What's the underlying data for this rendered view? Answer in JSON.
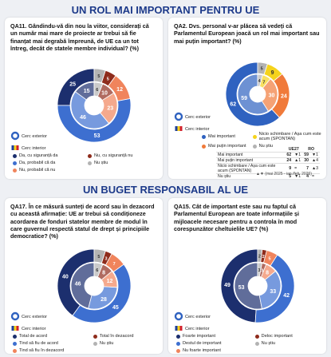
{
  "sections": [
    "UN ROL MAI IMPORTANT PENTRU UE",
    "UN BUGET RESPONSABIL AL UE"
  ],
  "chart_data": [
    {
      "type": "donut",
      "title": "QA11. Gândindu-vă din nou la viitor, considerați că un număr mai mare de proiecte ar trebui să fie finanțat mai degrabă împreună, de UE ca un tot întreg, decât de statele membre individual? (%)",
      "categories": [
        "Da, cu siguranță da",
        "Da, probabil că da",
        "Nu, probabil că nu",
        "Nu, cu siguranță nu",
        "Nu știu"
      ],
      "colors": [
        "#1c2f6e",
        "#3d6fd0",
        "#f0845c",
        "#8e2c1c",
        "#b3b3b3"
      ],
      "series": [
        {
          "name": "Cerc exterior",
          "values": [
            25,
            53,
            12,
            5,
            5
          ]
        },
        {
          "name": "Cerc interior",
          "values": [
            15,
            46,
            23,
            10,
            6
          ]
        }
      ]
    },
    {
      "type": "donut",
      "title": "QA2. Dvs. personal v-ar plăcea să vedeți că Parlamentul European joacă un rol mai important sau mai puțin important? (%)",
      "categories": [
        "Mai important",
        "Mai puțin important",
        "Nicio schimbare / Așa cum este acum (SPONTAN)",
        "Nu știu"
      ],
      "colors": [
        "#2f62c0",
        "#f07a3a",
        "#f5d31c",
        "#b3b3b3"
      ],
      "series": [
        {
          "name": "Cerc exterior",
          "values": [
            62,
            24,
            9,
            5
          ]
        },
        {
          "name": "Cerc interior",
          "values": [
            59,
            30,
            7,
            4
          ]
        }
      ],
      "table": {
        "columns": [
          "UE27",
          "RO"
        ],
        "changes": [
          [
            "▼1",
            "▼1"
          ],
          [
            "▲1",
            "▲4"
          ],
          [
            "=",
            "▲3"
          ],
          [
            "▼1",
            "="
          ]
        ],
        "note": "▲▼ (mai 2025 - ian./feb. 2026)"
      }
    },
    {
      "type": "donut",
      "title": "QA17. În ce măsură sunteți de acord sau în dezacord cu această afirmație: UE ar trebui să condiționeze acordarea de fonduri statelor membre de modul în care guvernul respectă statul de drept și principiile democratice? (%)",
      "categories": [
        "Total de acord",
        "Tind să fiu de acord",
        "Tind să fiu în dezacord",
        "Total în dezacord",
        "Nu știu"
      ],
      "colors": [
        "#1c2f6e",
        "#3d6fd0",
        "#f0845c",
        "#8e2c1c",
        "#b3b3b3"
      ],
      "series": [
        {
          "name": "Cerc exterior",
          "values": [
            40,
            45,
            7,
            3,
            5
          ]
        },
        {
          "name": "Cerc interior",
          "values": [
            46,
            28,
            12,
            8,
            6
          ]
        }
      ]
    },
    {
      "type": "donut",
      "title": "QA15. Cât de important este sau nu faptul că Parlamentul European are toate informațiile și mijloacele necesare pentru a controla în mod corespunzător cheltuielile UE? (%)",
      "categories": [
        "Foarte important",
        "Destul de important",
        "Nu foarte important",
        "Deloc important",
        "Nu știu"
      ],
      "colors": [
        "#1c2f6e",
        "#3d6fd0",
        "#f0845c",
        "#8e2c1c",
        "#b3b3b3"
      ],
      "series": [
        {
          "name": "Cerc exterior",
          "values": [
            49,
            42,
            5,
            2,
            2
          ]
        },
        {
          "name": "Cerc interior",
          "values": [
            53,
            33,
            8,
            3,
            3
          ]
        }
      ]
    }
  ]
}
